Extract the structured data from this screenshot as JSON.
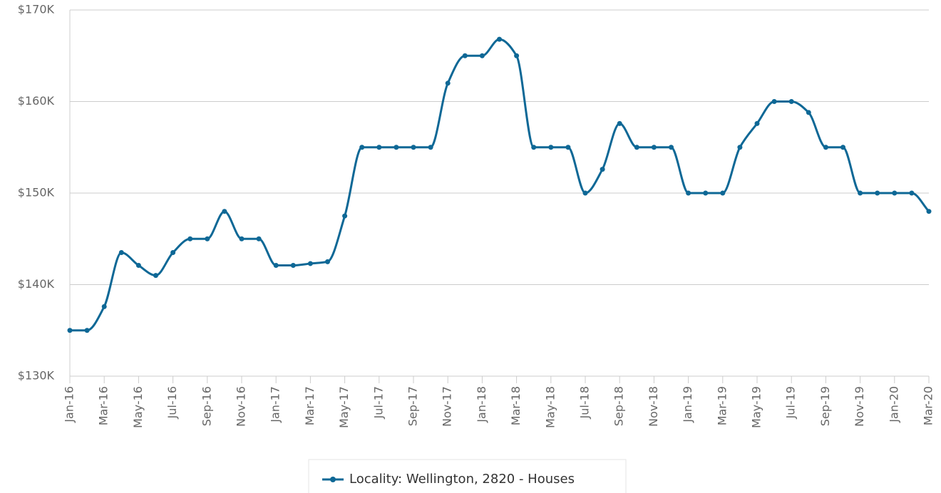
{
  "chart_data": {
    "type": "line",
    "categories": [
      "Jan-16",
      null,
      "Mar-16",
      null,
      "May-16",
      null,
      "Jul-16",
      null,
      "Sep-16",
      null,
      "Nov-16",
      null,
      "Jan-17",
      null,
      "Mar-17",
      null,
      "May-17",
      null,
      "Jul-17",
      null,
      "Sep-17",
      null,
      "Nov-17",
      null,
      "Jan-18",
      null,
      "Mar-18",
      null,
      "May-18",
      null,
      "Jul-18",
      null,
      "Sep-18",
      null,
      "Nov-18",
      null,
      "Jan-19",
      null,
      "Mar-19",
      null,
      "May-19",
      null,
      "Jul-19",
      null,
      "Sep-19",
      null,
      "Nov-19",
      null,
      "Jan-20",
      null,
      "Mar-20"
    ],
    "series": [
      {
        "name": "Locality: Wellington, 2820 - Houses",
        "color": "#0e6896",
        "values": [
          135000,
          135000,
          137600,
          143500,
          142100,
          141000,
          143500,
          145000,
          145000,
          148000,
          145000,
          145000,
          142100,
          142100,
          142300,
          142500,
          147500,
          155000,
          155000,
          155000,
          155000,
          155000,
          162000,
          165000,
          165000,
          166800,
          165000,
          155000,
          155000,
          155000,
          150000,
          152600,
          157600,
          155000,
          155000,
          155000,
          150000,
          150000,
          150000,
          155000,
          157600,
          160000,
          160000,
          158800,
          155000,
          155000,
          150000,
          150000,
          150000,
          150000,
          148000
        ]
      }
    ],
    "ylim": [
      130000,
      170000
    ],
    "yticks": [
      {
        "value": 130000,
        "label": "$130K"
      },
      {
        "value": 140000,
        "label": "$140K"
      },
      {
        "value": 150000,
        "label": "$150K"
      },
      {
        "value": 160000,
        "label": "$160K"
      },
      {
        "value": 170000,
        "label": "$170K"
      }
    ],
    "grid": true,
    "legend": "bottom"
  }
}
